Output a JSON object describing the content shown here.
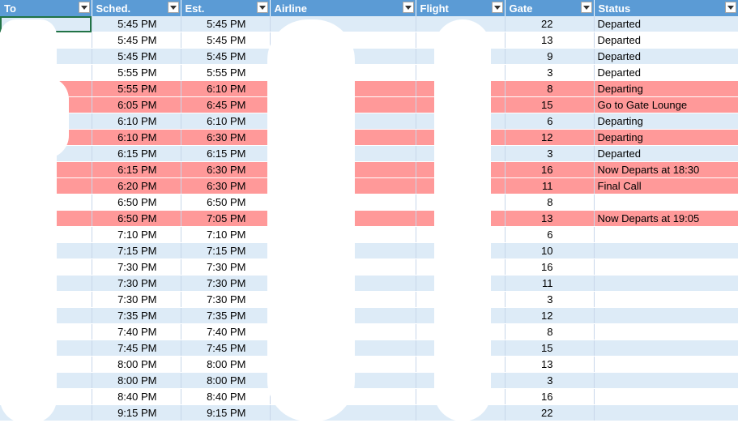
{
  "columns": [
    "To",
    "Sched.",
    "Est.",
    "Airline",
    "Flight",
    "Gate",
    "Status"
  ],
  "colors": {
    "header": "#5b9bd5",
    "band": "#ddebf7",
    "alert": "#ff9999",
    "white": "#ffffff"
  },
  "rows": [
    {
      "to": "",
      "sched": "5:45 PM",
      "est": "5:45 PM",
      "airline": "",
      "flight": "",
      "gate": "22",
      "status": "Departed",
      "style": "blue"
    },
    {
      "to": "",
      "sched": "5:45 PM",
      "est": "5:45 PM",
      "airline": "",
      "flight": "",
      "gate": "13",
      "status": "Departed",
      "style": "white"
    },
    {
      "to": "",
      "sched": "5:45 PM",
      "est": "5:45 PM",
      "airline": "",
      "flight": "",
      "gate": "9",
      "status": "Departed",
      "style": "blue"
    },
    {
      "to": "",
      "sched": "5:55 PM",
      "est": "5:55 PM",
      "airline": "",
      "flight": "",
      "gate": "3",
      "status": "Departed",
      "style": "white"
    },
    {
      "to": "",
      "sched": "5:55 PM",
      "est": "6:10 PM",
      "airline": "",
      "flight": "",
      "gate": "8",
      "status": "Departing",
      "style": "red"
    },
    {
      "to": "",
      "sched": "6:05 PM",
      "est": "6:45 PM",
      "airline": "",
      "flight": "",
      "gate": "15",
      "status": "Go to Gate Lounge",
      "style": "red"
    },
    {
      "to": "",
      "sched": "6:10 PM",
      "est": "6:10 PM",
      "airline": "",
      "flight": "",
      "gate": "6",
      "status": "Departing",
      "style": "blue"
    },
    {
      "to": "",
      "sched": "6:10 PM",
      "est": "6:30 PM",
      "airline": "",
      "flight": "",
      "gate": "12",
      "status": "Departing",
      "style": "red"
    },
    {
      "to": "",
      "sched": "6:15 PM",
      "est": "6:15 PM",
      "airline": "",
      "flight": "",
      "gate": "3",
      "status": "Departed",
      "style": "blue"
    },
    {
      "to": "",
      "sched": "6:15 PM",
      "est": "6:30 PM",
      "airline": "",
      "flight": "",
      "gate": "16",
      "status": "Now Departs at 18:30",
      "style": "red"
    },
    {
      "to": "",
      "sched": "6:20 PM",
      "est": "6:30 PM",
      "airline": "",
      "flight": "",
      "gate": "11",
      "status": "Final Call",
      "style": "red"
    },
    {
      "to": "",
      "sched": "6:50 PM",
      "est": "6:50 PM",
      "airline": "",
      "flight": "",
      "gate": "8",
      "status": "",
      "style": "white"
    },
    {
      "to": "",
      "sched": "6:50 PM",
      "est": "7:05 PM",
      "airline": "",
      "flight": "",
      "gate": "13",
      "status": "Now Departs at 19:05",
      "style": "red"
    },
    {
      "to": "",
      "sched": "7:10 PM",
      "est": "7:10 PM",
      "airline": "",
      "flight": "",
      "gate": "6",
      "status": "",
      "style": "white"
    },
    {
      "to": "",
      "sched": "7:15 PM",
      "est": "7:15 PM",
      "airline": "",
      "flight": "",
      "gate": "10",
      "status": "",
      "style": "blue"
    },
    {
      "to": "",
      "sched": "7:30 PM",
      "est": "7:30 PM",
      "airline": "",
      "flight": "",
      "gate": "16",
      "status": "",
      "style": "white"
    },
    {
      "to": "",
      "sched": "7:30 PM",
      "est": "7:30 PM",
      "airline": "",
      "flight": "",
      "gate": "11",
      "status": "",
      "style": "blue"
    },
    {
      "to": "",
      "sched": "7:30 PM",
      "est": "7:30 PM",
      "airline": "",
      "flight": "",
      "gate": "3",
      "status": "",
      "style": "white"
    },
    {
      "to": "",
      "sched": "7:35 PM",
      "est": "7:35 PM",
      "airline": "",
      "flight": "",
      "gate": "12",
      "status": "",
      "style": "blue"
    },
    {
      "to": "",
      "sched": "7:40 PM",
      "est": "7:40 PM",
      "airline": "",
      "flight": "",
      "gate": "8",
      "status": "",
      "style": "white"
    },
    {
      "to": "",
      "sched": "7:45 PM",
      "est": "7:45 PM",
      "airline": "",
      "flight": "",
      "gate": "15",
      "status": "",
      "style": "blue"
    },
    {
      "to": "",
      "sched": "8:00 PM",
      "est": "8:00 PM",
      "airline": "",
      "flight": "",
      "gate": "13",
      "status": "",
      "style": "white"
    },
    {
      "to": "",
      "sched": "8:00 PM",
      "est": "8:00 PM",
      "airline": "",
      "flight": "",
      "gate": "3",
      "status": "",
      "style": "blue"
    },
    {
      "to": "",
      "sched": "8:40 PM",
      "est": "8:40 PM",
      "airline": "",
      "flight": "",
      "gate": "16",
      "status": "",
      "style": "white"
    },
    {
      "to": "",
      "sched": "9:15 PM",
      "est": "9:15 PM",
      "airline": "",
      "flight": "",
      "gate": "22",
      "status": "",
      "style": "blue"
    }
  ]
}
